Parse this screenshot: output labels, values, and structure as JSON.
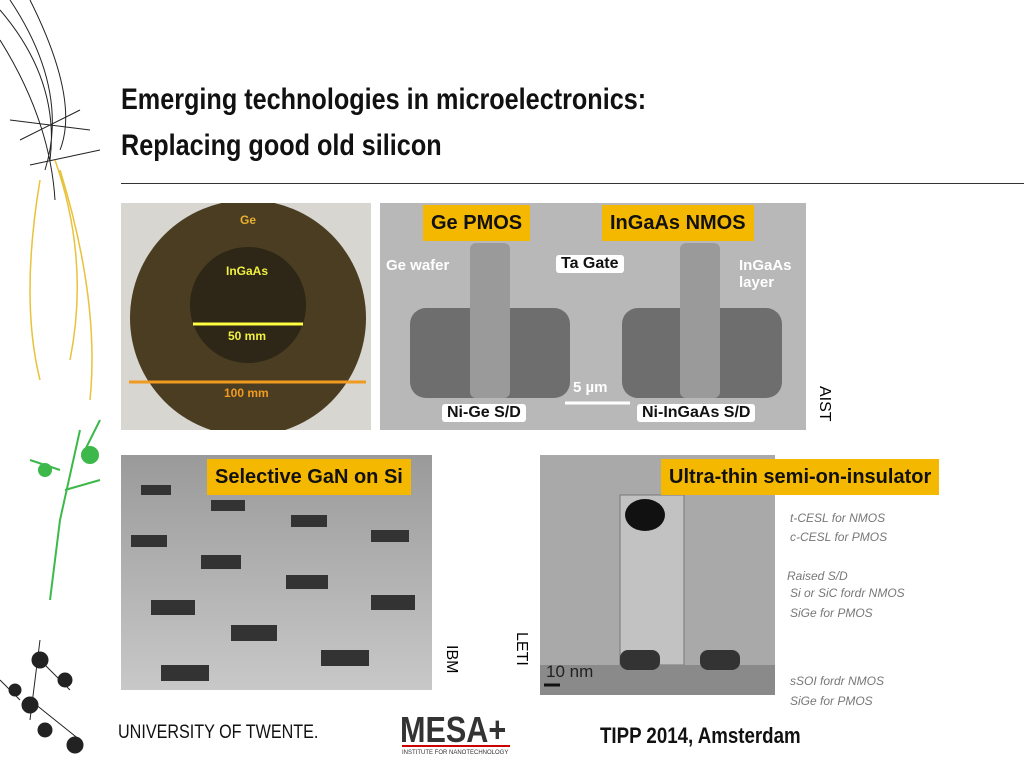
{
  "header": {
    "title_lines": [
      "Emerging technologies in microelectronics:",
      "Replacing good old silicon"
    ]
  },
  "figures": [
    {
      "labels": [
        "Ge",
        "InGaAs",
        "50 mm",
        "100 mm"
      ]
    },
    {
      "tags": [
        "Ge PMOS",
        "InGaAs NMOS"
      ],
      "labels": [
        "Ge wafer",
        "Ta Gate",
        "InGaAs\nlayer",
        "5 µm",
        "Ni-Ge S/D",
        "Ni-InGaAs S/D"
      ],
      "credit": "AIST"
    },
    {
      "tags": [
        "Selective GaN on Si"
      ],
      "credit": "IBM"
    },
    {
      "tags": [
        "Ultra-thin semi-on-insulator"
      ],
      "labels": [
        "t-CESL for NMOS",
        "c-CESL for PMOS",
        "Raised S/D",
        "Si or SiC fordr NMOS",
        "SiGe for PMOS",
        "10 nm",
        "sSOI fordr NMOS",
        "SiGe for PMOS"
      ],
      "credit": "LETI"
    }
  ],
  "footer": {
    "university": "UNIVERSITY OF TWENTE.",
    "institute": "MESA+",
    "institute_subtitle": "INSTITUTE FOR NANOTECHNOLOGY",
    "event": "TIPP 2014, Amsterdam"
  }
}
